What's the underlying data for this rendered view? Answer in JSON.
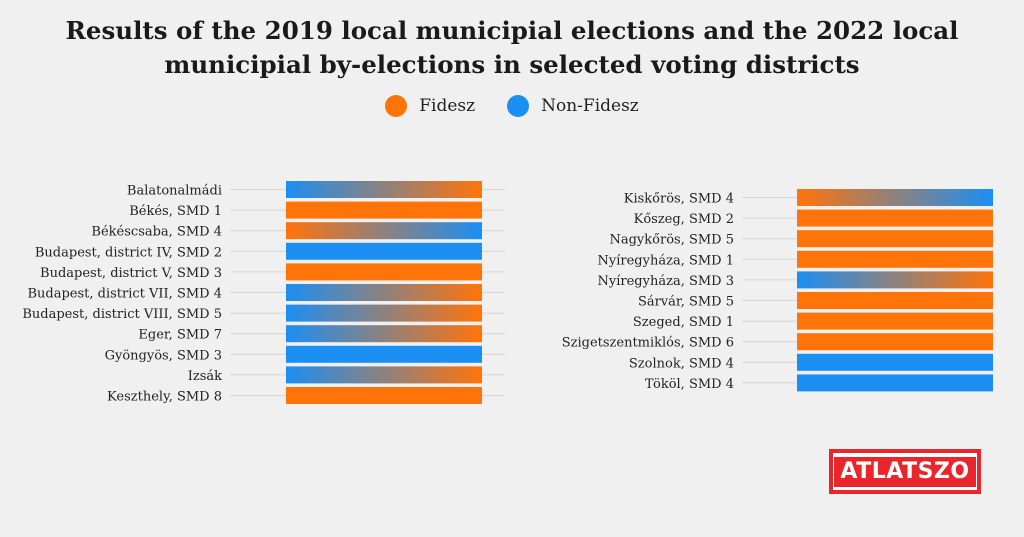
{
  "title_line1": "Results of the 2019 local municipial elections and the 2022 local",
  "title_line2": "municipial by-elections in selected voting districts",
  "legend": [
    {
      "label": "Fidesz",
      "color": "#ff7409"
    },
    {
      "label": "Non-Fidesz",
      "color": "#1b8ff2"
    }
  ],
  "logo_text": "ATLATSZO",
  "chart_data": [
    {
      "type": "bar",
      "encoding": "left half = 2019 winner, right half = 2022 winner",
      "categories": [
        "Balatonalmádi",
        "Békés, SMD 1",
        "Békéscsaba, SMD 4",
        "Budapest, district IV, SMD 2",
        "Budapest, district V, SMD 3",
        "Budapest, district VII, SMD 4",
        "Budapest, district VIII, SMD 5",
        "Eger, SMD 7",
        "Gyöngyös, SMD 3",
        "Izsák",
        "Keszthely, SMD 8"
      ],
      "winner_2019": [
        "Non-Fidesz",
        "Fidesz",
        "Fidesz",
        "Non-Fidesz",
        "Fidesz",
        "Non-Fidesz",
        "Non-Fidesz",
        "Non-Fidesz",
        "Non-Fidesz",
        "Non-Fidesz",
        "Fidesz"
      ],
      "winner_2022": [
        "Fidesz",
        "Fidesz",
        "Non-Fidesz",
        "Non-Fidesz",
        "Fidesz",
        "Fidesz",
        "Fidesz",
        "Fidesz",
        "Non-Fidesz",
        "Fidesz",
        "Fidesz"
      ]
    },
    {
      "type": "bar",
      "encoding": "left half = 2019 winner, right half = 2022 winner",
      "categories": [
        "Kiskőrös, SMD 4",
        "Kőszeg, SMD 2",
        "Nagykőrös, SMD 5",
        "Nyíregyháza, SMD 1",
        "Nyíregyháza, SMD 3",
        "Sárvár, SMD 5",
        "Szeged, SMD 1",
        "Szigetszentmiklós, SMD 6",
        "Szolnok, SMD 4",
        "Tököl, SMD 4"
      ],
      "winner_2019": [
        "Fidesz",
        "Fidesz",
        "Fidesz",
        "Fidesz",
        "Non-Fidesz",
        "Fidesz",
        "Fidesz",
        "Fidesz",
        "Non-Fidesz",
        "Non-Fidesz"
      ],
      "winner_2022": [
        "Non-Fidesz",
        "Fidesz",
        "Fidesz",
        "Fidesz",
        "Fidesz",
        "Fidesz",
        "Fidesz",
        "Fidesz",
        "Non-Fidesz",
        "Non-Fidesz"
      ]
    }
  ]
}
